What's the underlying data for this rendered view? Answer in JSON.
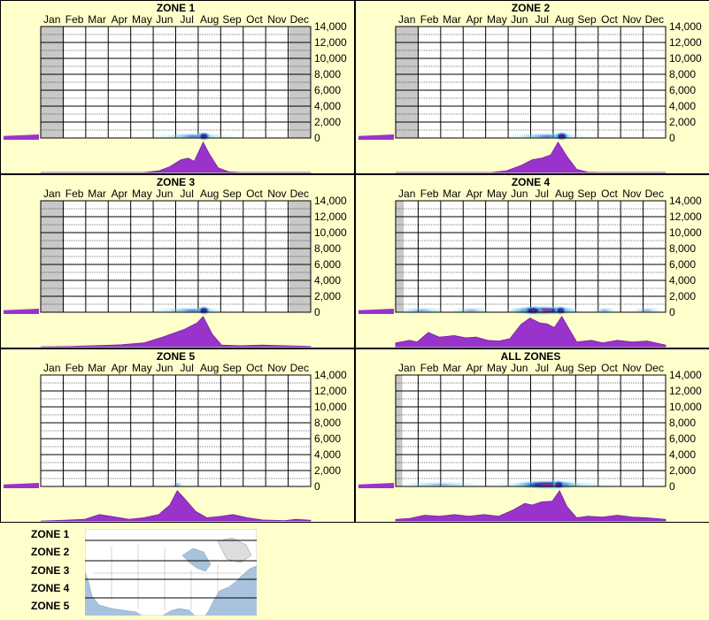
{
  "months": [
    "Jan",
    "Feb",
    "Mar",
    "Apr",
    "May",
    "Jun",
    "Jul",
    "Aug",
    "Sep",
    "Oct",
    "Nov",
    "Dec"
  ],
  "y_ticks": [
    "14,000",
    "12,000",
    "10,000",
    "8,000",
    "6,000",
    "4,000",
    "2,000",
    "0"
  ],
  "colors": {
    "background": "#FFFFCC",
    "curve_fill": "#9933CC",
    "curve_stroke": "#7722AA",
    "grid": "#000000",
    "shade": "#C8C8C8",
    "heat_core": "#CC1166",
    "heat_mid": "#1122AA",
    "heat_edge": "#66CCEE"
  },
  "chart_data": [
    {
      "type": "area",
      "title": "ZONE 1",
      "ylim": [
        0,
        14000
      ],
      "x_range_days": [
        1,
        365
      ],
      "shaded_start_day": [
        1,
        31
      ],
      "shaded_end_day": [
        336,
        365
      ],
      "seasonal_density": [
        [
          1,
          0
        ],
        [
          140,
          0
        ],
        [
          160,
          0.05
        ],
        [
          175,
          0.18
        ],
        [
          190,
          0.4
        ],
        [
          200,
          0.45
        ],
        [
          208,
          0.35
        ],
        [
          215,
          0.7
        ],
        [
          220,
          0.95
        ],
        [
          228,
          0.6
        ],
        [
          240,
          0.15
        ],
        [
          255,
          0.02
        ],
        [
          270,
          0
        ],
        [
          365,
          0
        ]
      ],
      "heat_blobs": [
        [
          150,
          265,
          0.15
        ],
        [
          175,
          238,
          0.5
        ],
        [
          212,
          230,
          1
        ]
      ],
      "elevation_curve": [
        0.07,
        0.1
      ]
    },
    {
      "type": "area",
      "title": "ZONE 2",
      "ylim": [
        0,
        14000
      ],
      "x_range_days": [
        1,
        365
      ],
      "shaded_start_day": [
        1,
        31
      ],
      "shaded_end_day": [],
      "seasonal_density": [
        [
          1,
          0
        ],
        [
          130,
          0
        ],
        [
          150,
          0.05
        ],
        [
          170,
          0.22
        ],
        [
          185,
          0.4
        ],
        [
          198,
          0.45
        ],
        [
          210,
          0.55
        ],
        [
          220,
          0.95
        ],
        [
          232,
          0.5
        ],
        [
          245,
          0.1
        ],
        [
          260,
          0.01
        ],
        [
          275,
          0
        ],
        [
          365,
          0
        ]
      ],
      "heat_blobs": [
        [
          145,
          265,
          0.15
        ],
        [
          170,
          240,
          0.5
        ],
        [
          215,
          235,
          1
        ]
      ],
      "elevation_curve": [
        0.07,
        0.1
      ]
    },
    {
      "type": "area",
      "title": "ZONE 3",
      "ylim": [
        0,
        14000
      ],
      "x_range_days": [
        1,
        365
      ],
      "shaded_start_day": [
        1,
        31
      ],
      "shaded_end_day": [
        336,
        365
      ],
      "seasonal_density": [
        [
          1,
          0
        ],
        [
          40,
          0.01
        ],
        [
          80,
          0.04
        ],
        [
          110,
          0.06
        ],
        [
          140,
          0.12
        ],
        [
          165,
          0.3
        ],
        [
          195,
          0.55
        ],
        [
          212,
          0.75
        ],
        [
          220,
          0.95
        ],
        [
          232,
          0.4
        ],
        [
          245,
          0.05
        ],
        [
          270,
          0.03
        ],
        [
          300,
          0.05
        ],
        [
          330,
          0.03
        ],
        [
          365,
          0.01
        ]
      ],
      "heat_blobs": [
        [
          140,
          260,
          0.15
        ],
        [
          175,
          238,
          0.5
        ],
        [
          212,
          230,
          1
        ]
      ],
      "elevation_curve": [
        0.07,
        0.1
      ]
    },
    {
      "type": "area",
      "title": "ZONE 4",
      "ylim": [
        0,
        14000
      ],
      "x_range_days": [
        1,
        365
      ],
      "shaded_start_day": [
        1,
        12
      ],
      "shaded_end_day": [],
      "seasonal_density": [
        [
          1,
          0.12
        ],
        [
          20,
          0.2
        ],
        [
          30,
          0.15
        ],
        [
          45,
          0.45
        ],
        [
          60,
          0.3
        ],
        [
          80,
          0.35
        ],
        [
          95,
          0.28
        ],
        [
          110,
          0.3
        ],
        [
          125,
          0.2
        ],
        [
          140,
          0.18
        ],
        [
          155,
          0.25
        ],
        [
          170,
          0.7
        ],
        [
          182,
          0.9
        ],
        [
          195,
          0.75
        ],
        [
          205,
          0.72
        ],
        [
          215,
          0.6
        ],
        [
          225,
          0.95
        ],
        [
          235,
          0.55
        ],
        [
          245,
          0.15
        ],
        [
          265,
          0.2
        ],
        [
          280,
          0.12
        ],
        [
          300,
          0.2
        ],
        [
          320,
          0.15
        ],
        [
          340,
          0.18
        ],
        [
          365,
          0.05
        ]
      ],
      "heat_blobs": [
        [
          1,
          70,
          0.35
        ],
        [
          75,
          130,
          0.3
        ],
        [
          150,
          250,
          0.7
        ],
        [
          172,
          200,
          1
        ],
        [
          215,
          232,
          1
        ],
        [
          265,
          300,
          0.3
        ],
        [
          320,
          360,
          0.3
        ]
      ],
      "elevation_curve": [
        0.07,
        0.1
      ]
    },
    {
      "type": "area",
      "title": "ZONE 5",
      "ylim": [
        0,
        14000
      ],
      "x_range_days": [
        1,
        365
      ],
      "shaded_start_day": [],
      "shaded_end_day": [],
      "seasonal_density": [
        [
          1,
          0
        ],
        [
          30,
          0.02
        ],
        [
          60,
          0.05
        ],
        [
          80,
          0.2
        ],
        [
          95,
          0.15
        ],
        [
          120,
          0.05
        ],
        [
          140,
          0.1
        ],
        [
          160,
          0.2
        ],
        [
          175,
          0.5
        ],
        [
          185,
          0.95
        ],
        [
          195,
          0.7
        ],
        [
          210,
          0.3
        ],
        [
          225,
          0.1
        ],
        [
          245,
          0.15
        ],
        [
          260,
          0.2
        ],
        [
          280,
          0.1
        ],
        [
          300,
          0.03
        ],
        [
          330,
          0.01
        ],
        [
          345,
          0.05
        ],
        [
          365,
          0.02
        ]
      ],
      "heat_blobs": [
        [
          175,
          195,
          0.3
        ]
      ],
      "elevation_curve": [
        0.07,
        0.1
      ]
    },
    {
      "type": "area",
      "title": "ALL ZONES",
      "ylim": [
        0,
        14000
      ],
      "x_range_days": [
        1,
        365
      ],
      "shaded_start_day": [
        1,
        10
      ],
      "shaded_end_day": [],
      "seasonal_density": [
        [
          1,
          0.05
        ],
        [
          20,
          0.08
        ],
        [
          40,
          0.18
        ],
        [
          60,
          0.15
        ],
        [
          80,
          0.2
        ],
        [
          100,
          0.15
        ],
        [
          120,
          0.2
        ],
        [
          140,
          0.15
        ],
        [
          160,
          0.35
        ],
        [
          175,
          0.55
        ],
        [
          185,
          0.5
        ],
        [
          198,
          0.6
        ],
        [
          212,
          0.62
        ],
        [
          222,
          0.95
        ],
        [
          232,
          0.45
        ],
        [
          245,
          0.1
        ],
        [
          260,
          0.15
        ],
        [
          280,
          0.12
        ],
        [
          300,
          0.18
        ],
        [
          320,
          0.12
        ],
        [
          340,
          0.1
        ],
        [
          365,
          0.05
        ]
      ],
      "heat_blobs": [
        [
          1,
          120,
          0.2
        ],
        [
          120,
          300,
          0.25
        ],
        [
          160,
          250,
          0.8
        ],
        [
          212,
          230,
          1
        ]
      ],
      "elevation_curve": [
        0.07,
        0.1
      ]
    }
  ],
  "legend": {
    "zones": [
      "ZONE 1",
      "ZONE 2",
      "ZONE 3",
      "ZONE 4",
      "ZONE 5"
    ]
  }
}
